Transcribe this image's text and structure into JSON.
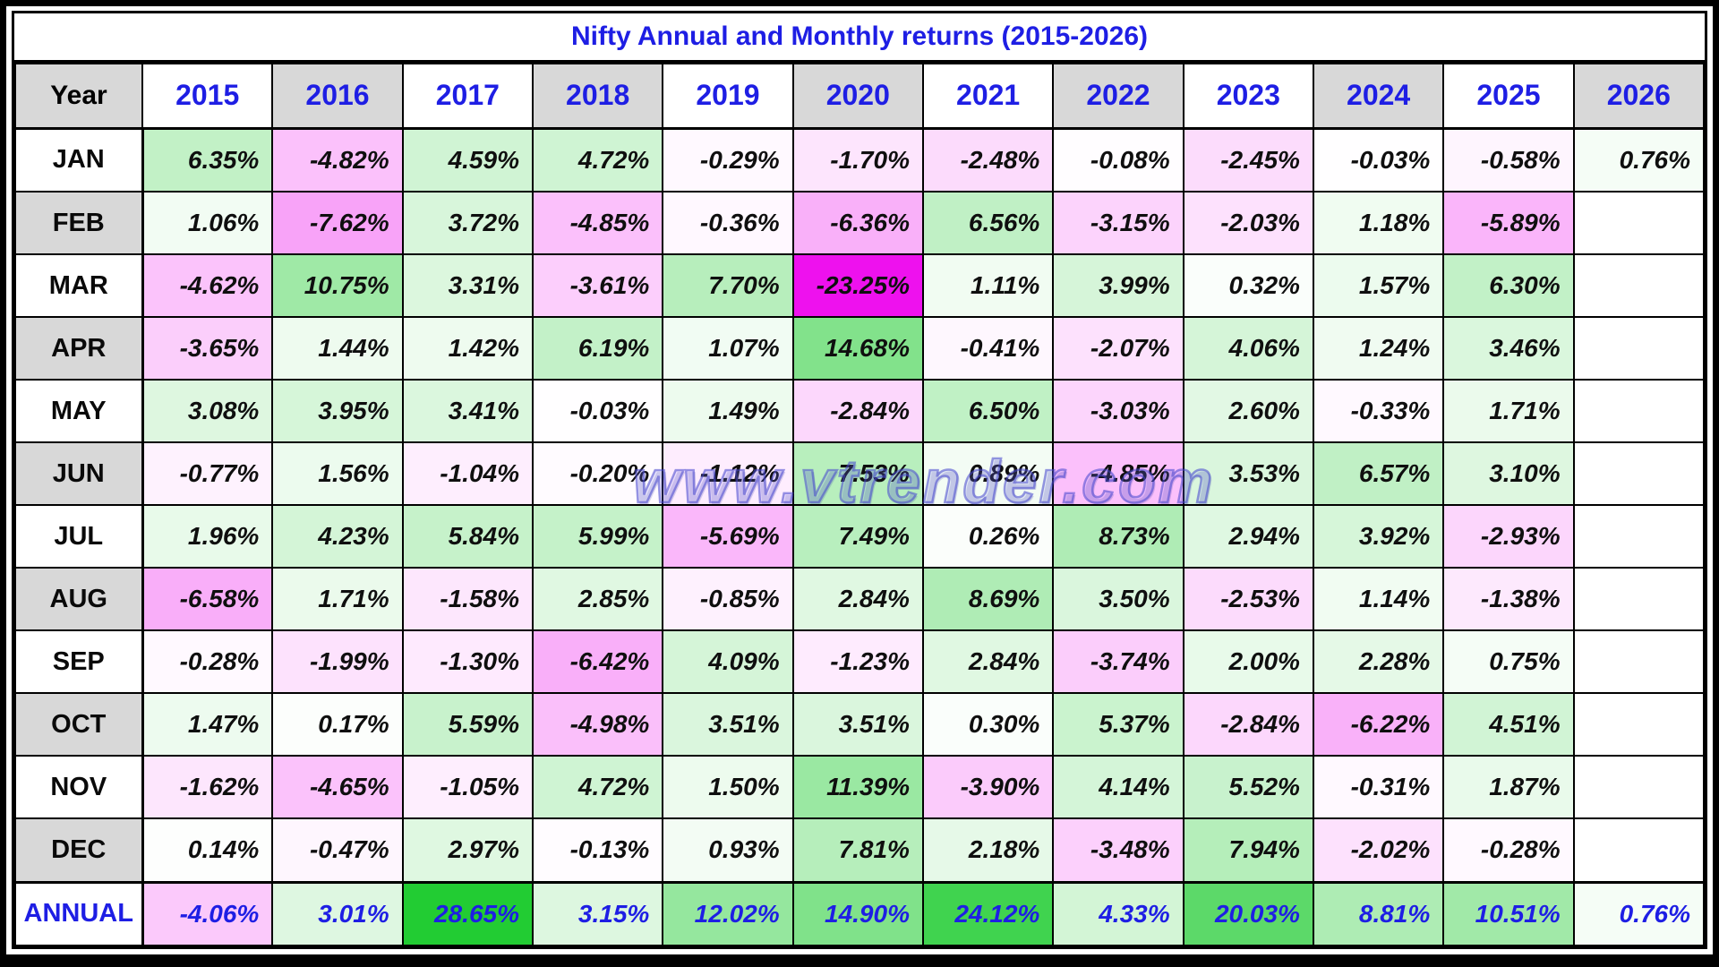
{
  "title": "Nifty Annual and Monthly returns (2015-2026)",
  "watermark": "www.vtrender.com",
  "header": {
    "year_label": "Year"
  },
  "colors": {
    "title_blue": "#1E1EE4",
    "header_gray": "#D8D8D8",
    "positive_green": "#22CC33",
    "negative_magenta": "#EE11EE",
    "annual_text_blue": "#1E1EE4",
    "grid_black": "#000000",
    "zero_white": "#FFFFFF"
  },
  "chart_data": {
    "type": "heatmap",
    "title": "Nifty Annual and Monthly returns (2015-2026)",
    "row_header": "Year",
    "unit": "%",
    "columns": [
      "2015",
      "2016",
      "2017",
      "2018",
      "2019",
      "2020",
      "2021",
      "2022",
      "2023",
      "2024",
      "2025",
      "2026"
    ],
    "rows": [
      "JAN",
      "FEB",
      "MAR",
      "APR",
      "MAY",
      "JUN",
      "JUL",
      "AUG",
      "SEP",
      "OCT",
      "NOV",
      "DEC",
      "ANNUAL"
    ],
    "color_scale": {
      "min": -23.25,
      "max": 28.65,
      "positive": "#22CC33",
      "negative": "#EE11EE",
      "zero": "#FFFFFF"
    },
    "matrix": [
      [
        6.35,
        -4.82,
        4.59,
        4.72,
        -0.29,
        -1.7,
        -2.48,
        -0.08,
        -2.45,
        -0.03,
        -0.58,
        0.76
      ],
      [
        1.06,
        -7.62,
        3.72,
        -4.85,
        -0.36,
        -6.36,
        6.56,
        -3.15,
        -2.03,
        1.18,
        -5.89,
        null
      ],
      [
        -4.62,
        10.75,
        3.31,
        -3.61,
        7.7,
        -23.25,
        1.11,
        3.99,
        0.32,
        1.57,
        6.3,
        null
      ],
      [
        -3.65,
        1.44,
        1.42,
        6.19,
        1.07,
        14.68,
        -0.41,
        -2.07,
        4.06,
        1.24,
        3.46,
        null
      ],
      [
        3.08,
        3.95,
        3.41,
        -0.03,
        1.49,
        -2.84,
        6.5,
        -3.03,
        2.6,
        -0.33,
        1.71,
        null
      ],
      [
        -0.77,
        1.56,
        -1.04,
        -0.2,
        -1.12,
        7.53,
        0.89,
        -4.85,
        3.53,
        6.57,
        3.1,
        null
      ],
      [
        1.96,
        4.23,
        5.84,
        5.99,
        -5.69,
        7.49,
        0.26,
        8.73,
        2.94,
        3.92,
        -2.93,
        null
      ],
      [
        -6.58,
        1.71,
        -1.58,
        2.85,
        -0.85,
        2.84,
        8.69,
        3.5,
        -2.53,
        1.14,
        -1.38,
        null
      ],
      [
        -0.28,
        -1.99,
        -1.3,
        -6.42,
        4.09,
        -1.23,
        2.84,
        -3.74,
        2.0,
        2.28,
        0.75,
        null
      ],
      [
        1.47,
        0.17,
        5.59,
        -4.98,
        3.51,
        3.51,
        0.3,
        5.37,
        -2.84,
        -6.22,
        4.51,
        null
      ],
      [
        -1.62,
        -4.65,
        -1.05,
        4.72,
        1.5,
        11.39,
        -3.9,
        4.14,
        5.52,
        -0.31,
        1.87,
        null
      ],
      [
        0.14,
        -0.47,
        2.97,
        -0.13,
        0.93,
        7.81,
        2.18,
        -3.48,
        7.94,
        -2.02,
        -0.28,
        null
      ],
      [
        -4.06,
        3.01,
        28.65,
        3.15,
        12.02,
        14.9,
        24.12,
        4.33,
        20.03,
        8.81,
        10.51,
        0.76
      ]
    ]
  }
}
